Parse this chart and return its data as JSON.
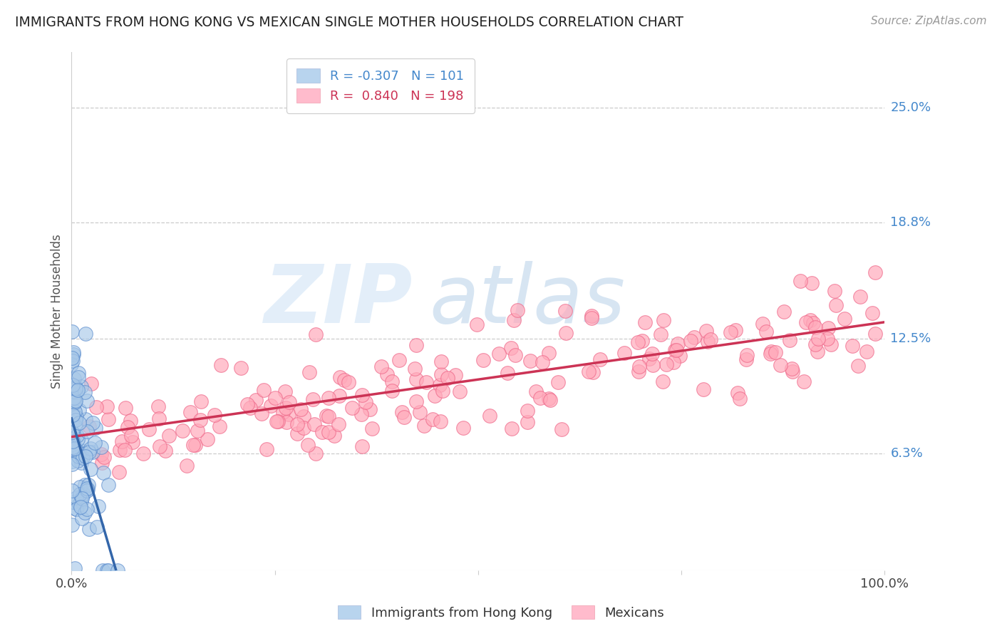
{
  "title": "IMMIGRANTS FROM HONG KONG VS MEXICAN SINGLE MOTHER HOUSEHOLDS CORRELATION CHART",
  "source": "Source: ZipAtlas.com",
  "ylabel": "Single Mother Households",
  "watermark_zip": "ZIP",
  "watermark_atlas": "atlas",
  "xlim": [
    0,
    1.0
  ],
  "ylim": [
    0,
    0.28
  ],
  "yticks": [
    0.063,
    0.125,
    0.188,
    0.25
  ],
  "ytick_labels": [
    "6.3%",
    "12.5%",
    "18.8%",
    "25.0%"
  ],
  "legend_blue_r": "-0.307",
  "legend_blue_n": "101",
  "legend_pink_r": "0.840",
  "legend_pink_n": "198",
  "legend_blue_label": "Immigrants from Hong Kong",
  "legend_pink_label": "Mexicans",
  "blue_fill": "#a8c8e8",
  "blue_edge": "#5588cc",
  "pink_fill": "#ffaabb",
  "pink_edge": "#ee6688",
  "blue_line_color": "#3366aa",
  "pink_line_color": "#cc3355",
  "background_color": "#ffffff",
  "grid_color": "#cccccc",
  "title_color": "#222222",
  "source_color": "#999999",
  "right_label_color": "#4488cc",
  "blue_n": 101,
  "pink_n": 198,
  "blue_seed": 42,
  "pink_seed": 77
}
